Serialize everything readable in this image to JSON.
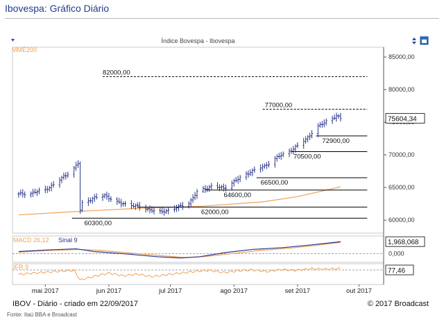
{
  "page": {
    "title": "Ibovespa: Gráfico Diário",
    "footer_left": "IBOV - Diário - criado em 22/09/2017",
    "footer_right": "© 2017 Broadcast",
    "source": "Fonte: Itaú BBA e Broadcast"
  },
  "colors": {
    "title": "#1f3c88",
    "price_bars": "#27338a",
    "mme200": "#f0a055",
    "macd_line": "#27338a",
    "signal_line": "#f0a055",
    "ifr_line": "#f0a055",
    "level_line": "#000000"
  },
  "chart_data": {
    "type": "ohlc-bar",
    "title": "Índice Bovespa - Ibovespa",
    "header_icons": [
      "chevron-down-icon",
      "sort-arrows-icon",
      "calendar-icon"
    ],
    "x_ticks": [
      "mai 2017",
      "jun 2017",
      "jul 2017",
      "ago 2017",
      "set 2017",
      "out 2017"
    ],
    "price_panel": {
      "ylim": [
        58000,
        86500
      ],
      "y_ticks": [
        "85000,00",
        "80000,00",
        "75000,00",
        "70000,00",
        "65000,00",
        "60000,00"
      ],
      "indicator_label": "MME200",
      "last_price": "75604,34",
      "price_path": [
        {
          "date": "2017-04-18",
          "close": 64000
        },
        {
          "date": "2017-04-24",
          "close": 64100
        },
        {
          "date": "2017-05-01",
          "close": 64700
        },
        {
          "date": "2017-05-05",
          "close": 65400
        },
        {
          "date": "2017-05-10",
          "close": 66700
        },
        {
          "date": "2017-05-15",
          "close": 67900
        },
        {
          "date": "2017-05-17",
          "close": 68700
        },
        {
          "date": "2017-05-18",
          "close": 61500
        },
        {
          "date": "2017-05-19",
          "close": 62600
        },
        {
          "date": "2017-05-24",
          "close": 63300
        },
        {
          "date": "2017-05-30",
          "close": 63800
        },
        {
          "date": "2017-06-05",
          "close": 62700
        },
        {
          "date": "2017-06-12",
          "close": 62300
        },
        {
          "date": "2017-06-20",
          "close": 61700
        },
        {
          "date": "2017-06-26",
          "close": 61200
        },
        {
          "date": "2017-07-03",
          "close": 61800
        },
        {
          "date": "2017-07-10",
          "close": 62600
        },
        {
          "date": "2017-07-14",
          "close": 64300
        },
        {
          "date": "2017-07-21",
          "close": 65200
        },
        {
          "date": "2017-07-27",
          "close": 64900
        },
        {
          "date": "2017-08-02",
          "close": 66100
        },
        {
          "date": "2017-08-09",
          "close": 67400
        },
        {
          "date": "2017-08-16",
          "close": 68300
        },
        {
          "date": "2017-08-23",
          "close": 69800
        },
        {
          "date": "2017-08-30",
          "close": 70900
        },
        {
          "date": "2017-09-05",
          "close": 72400
        },
        {
          "date": "2017-09-11",
          "close": 74300
        },
        {
          "date": "2017-09-15",
          "close": 75200
        },
        {
          "date": "2017-09-20",
          "close": 75900
        },
        {
          "date": "2017-09-22",
          "close": 75600
        }
      ],
      "mme200": [
        {
          "date": "2017-04-18",
          "value": 60800
        },
        {
          "date": "2017-05-15",
          "value": 61300
        },
        {
          "date": "2017-06-15",
          "value": 61800
        },
        {
          "date": "2017-07-15",
          "value": 62100
        },
        {
          "date": "2017-08-15",
          "value": 62800
        },
        {
          "date": "2017-09-01",
          "value": 63600
        },
        {
          "date": "2017-09-22",
          "value": 65100
        }
      ],
      "levels": [
        {
          "value": 82000,
          "label": "82000,00",
          "style": "dashed",
          "from": "2017-05-29",
          "to": "2017-10-05",
          "label_date": "2017-05-29",
          "label_pos": "above"
        },
        {
          "value": 77000,
          "label": "77000,00",
          "style": "dashed",
          "from": "2017-08-15",
          "to": "2017-10-05",
          "label_date": "2017-08-16",
          "label_pos": "above"
        },
        {
          "value": 72900,
          "label": "72900,00",
          "style": "solid",
          "from": "2017-09-10",
          "to": "2017-10-05",
          "label_date": "2017-09-13",
          "label_pos": "below"
        },
        {
          "value": 70500,
          "label": "70500,00",
          "style": "solid",
          "from": "2017-08-29",
          "to": "2017-10-05",
          "label_date": "2017-08-30",
          "label_pos": "below"
        },
        {
          "value": 66500,
          "label": "66500,00",
          "style": "solid",
          "from": "2017-08-12",
          "to": "2017-10-05",
          "label_date": "2017-08-14",
          "label_pos": "below"
        },
        {
          "value": 64600,
          "label": "64600,00",
          "style": "solid",
          "from": "2017-07-18",
          "to": "2017-10-05",
          "label_date": "2017-07-27",
          "label_pos": "below"
        },
        {
          "value": 62000,
          "label": "62000,00",
          "style": "solid",
          "from": "2017-06-15",
          "to": "2017-10-05",
          "label_date": "2017-07-16",
          "label_pos": "below"
        },
        {
          "value": 60300,
          "label": "60300,00",
          "style": "solid",
          "from": "2017-05-14",
          "to": "2017-10-05",
          "label_date": "2017-05-20",
          "label_pos": "below"
        }
      ]
    },
    "macd_panel": {
      "label": "MACD 26,12",
      "signal_label": "Sinal 9",
      "ylim": [
        -1.4,
        2.9
      ],
      "y_ticks": [
        "0,000"
      ],
      "last_value": "1,968,068",
      "macd": [
        {
          "date": "2017-04-18",
          "value": 0.35
        },
        {
          "date": "2017-05-01",
          "value": 0.6
        },
        {
          "date": "2017-05-16",
          "value": 0.8
        },
        {
          "date": "2017-05-25",
          "value": 0.35
        },
        {
          "date": "2017-06-10",
          "value": -0.05
        },
        {
          "date": "2017-06-25",
          "value": -0.5
        },
        {
          "date": "2017-07-06",
          "value": -0.7
        },
        {
          "date": "2017-07-15",
          "value": -0.5
        },
        {
          "date": "2017-07-28",
          "value": 0.2
        },
        {
          "date": "2017-08-10",
          "value": 0.7
        },
        {
          "date": "2017-08-25",
          "value": 1.0
        },
        {
          "date": "2017-09-08",
          "value": 1.45
        },
        {
          "date": "2017-09-22",
          "value": 1.97
        }
      ],
      "signal": [
        {
          "date": "2017-04-18",
          "value": 0.25
        },
        {
          "date": "2017-05-01",
          "value": 0.5
        },
        {
          "date": "2017-05-18",
          "value": 0.7
        },
        {
          "date": "2017-05-28",
          "value": 0.55
        },
        {
          "date": "2017-06-12",
          "value": 0.1
        },
        {
          "date": "2017-06-28",
          "value": -0.35
        },
        {
          "date": "2017-07-08",
          "value": -0.6
        },
        {
          "date": "2017-07-18",
          "value": -0.45
        },
        {
          "date": "2017-08-01",
          "value": 0.05
        },
        {
          "date": "2017-08-14",
          "value": 0.55
        },
        {
          "date": "2017-08-28",
          "value": 0.9
        },
        {
          "date": "2017-09-10",
          "value": 1.35
        },
        {
          "date": "2017-09-22",
          "value": 1.85
        }
      ]
    },
    "ifr_panel": {
      "label": "IFR 9",
      "ylim": [
        0,
        100
      ],
      "y_ticks": [],
      "last_value": "77,46",
      "dashed_level": 70,
      "values": [
        {
          "date": "2017-04-18",
          "value": 48
        },
        {
          "date": "2017-04-25",
          "value": 55
        },
        {
          "date": "2017-05-05",
          "value": 62
        },
        {
          "date": "2017-05-15",
          "value": 68
        },
        {
          "date": "2017-05-18",
          "value": 22
        },
        {
          "date": "2017-05-25",
          "value": 40
        },
        {
          "date": "2017-06-01",
          "value": 55
        },
        {
          "date": "2017-06-08",
          "value": 42
        },
        {
          "date": "2017-06-15",
          "value": 50
        },
        {
          "date": "2017-06-22",
          "value": 38
        },
        {
          "date": "2017-06-29",
          "value": 47
        },
        {
          "date": "2017-07-06",
          "value": 55
        },
        {
          "date": "2017-07-13",
          "value": 63
        },
        {
          "date": "2017-07-20",
          "value": 68
        },
        {
          "date": "2017-07-27",
          "value": 58
        },
        {
          "date": "2017-08-03",
          "value": 66
        },
        {
          "date": "2017-08-10",
          "value": 70
        },
        {
          "date": "2017-08-17",
          "value": 62
        },
        {
          "date": "2017-08-24",
          "value": 72
        },
        {
          "date": "2017-08-31",
          "value": 68
        },
        {
          "date": "2017-09-07",
          "value": 76
        },
        {
          "date": "2017-09-14",
          "value": 74
        },
        {
          "date": "2017-09-22",
          "value": 77
        }
      ]
    }
  }
}
